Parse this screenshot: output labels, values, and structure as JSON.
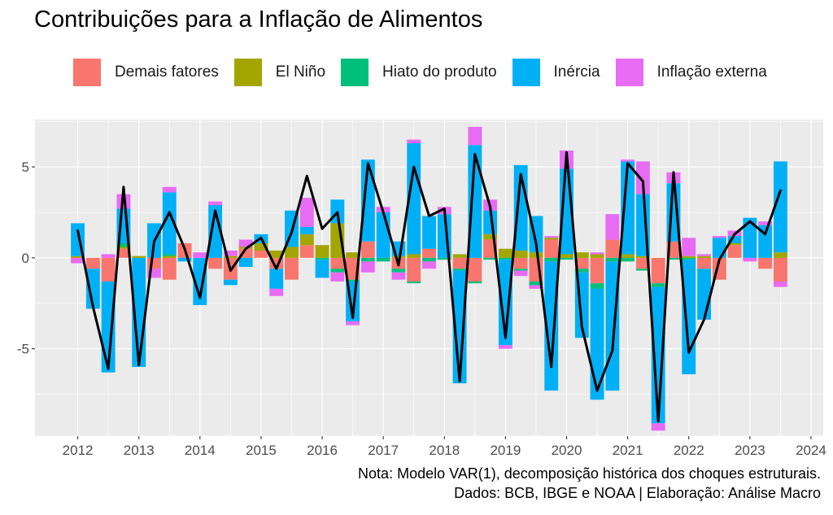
{
  "chart_data": {
    "type": "bar",
    "title": "Contribuições para a Inflação de Alimentos",
    "ylim": [
      -9.8,
      7.6
    ],
    "xlim": [
      2011.3,
      2024.2
    ],
    "y_ticks": [
      "-5",
      "0",
      "5"
    ],
    "y_tick_values": [
      -5,
      0,
      5
    ],
    "x_ticks": [
      "2012",
      "2013",
      "2014",
      "2015",
      "2016",
      "2017",
      "2018",
      "2019",
      "2020",
      "2021",
      "2022",
      "2023",
      "2024"
    ],
    "x_tick_values": [
      2012,
      2013,
      2014,
      2015,
      2016,
      2017,
      2018,
      2019,
      2020,
      2021,
      2022,
      2023,
      2024
    ],
    "grid": true,
    "legend_position": "top",
    "legend": [
      {
        "name": "Demais fatores",
        "color": "#F8766D"
      },
      {
        "name": "El Niño",
        "color": "#A3A500"
      },
      {
        "name": "Hiato do produto",
        "color": "#00BF7D"
      },
      {
        "name": "Inércia",
        "color": "#00B0F6"
      },
      {
        "name": "Inflação externa",
        "color": "#E76BF3"
      }
    ],
    "x": [
      2012,
      2012.25,
      2012.5,
      2012.75,
      2013,
      2013.25,
      2013.5,
      2013.75,
      2014,
      2014.25,
      2014.5,
      2014.75,
      2015,
      2015.25,
      2015.5,
      2015.75,
      2016,
      2016.25,
      2016.5,
      2016.75,
      2017,
      2017.25,
      2017.5,
      2017.75,
      2018,
      2018.25,
      2018.5,
      2018.75,
      2019,
      2019.25,
      2019.5,
      2019.75,
      2020,
      2020.25,
      2020.5,
      2020.75,
      2021,
      2021.25,
      2021.5,
      2021.75,
      2022,
      2022.25,
      2022.5,
      2022.75,
      2023,
      2023.25,
      2023.5
    ],
    "series": [
      {
        "name": "Demais fatores",
        "values": [
          0,
          -0.6,
          -1.3,
          0.5,
          0,
          -0.6,
          -1.2,
          0.8,
          0,
          -0.6,
          -1.2,
          0.5,
          0.4,
          -0.6,
          -1.2,
          0.7,
          0,
          -0.6,
          -1.2,
          0.9,
          0,
          -0.6,
          -1.3,
          0.5,
          0,
          -0.6,
          -1.3,
          1.0,
          0,
          -0.6,
          -1.3,
          1.0,
          0,
          -0.6,
          -1.4,
          1.0,
          0,
          -0.6,
          -1.4,
          0.9,
          0,
          -0.6,
          -1.2,
          0.7,
          0,
          -0.6,
          -1.3
        ]
      },
      {
        "name": "El Niño",
        "values": [
          0.1,
          0,
          0,
          0.1,
          0.1,
          0,
          0.1,
          0,
          0,
          0,
          0.1,
          0.1,
          0.4,
          0.4,
          0.6,
          0.6,
          0.7,
          1.9,
          0.3,
          0,
          0,
          0.1,
          0.2,
          0,
          0,
          0.2,
          0,
          0.3,
          0.5,
          0.4,
          0.3,
          0.1,
          0.2,
          0.3,
          0.2,
          0,
          0.2,
          0.1,
          0,
          0,
          0.1,
          0.1,
          0,
          0.1,
          0,
          0,
          0.3
        ]
      },
      {
        "name": "Hiato do produto",
        "values": [
          0,
          0,
          0,
          0.2,
          0,
          0,
          0.1,
          0,
          0,
          0,
          0,
          0,
          0,
          0,
          0,
          0,
          -0.1,
          -0.2,
          -0.1,
          -0.2,
          -0.2,
          -0.2,
          -0.1,
          -0.2,
          -0.1,
          -0.1,
          -0.1,
          -0.1,
          -0.1,
          -0.1,
          -0.2,
          -0.2,
          -0.1,
          -0.2,
          -0.3,
          -0.2,
          -0.2,
          -0.1,
          -0.2,
          -0.1,
          -0.1,
          0,
          0,
          0,
          0,
          0,
          0
        ]
      },
      {
        "name": "Inércia",
        "values": [
          1.8,
          -2.2,
          -5.0,
          1.9,
          -6.0,
          1.9,
          3.4,
          -0.2,
          -2.6,
          2.9,
          -0.3,
          -0.5,
          0.5,
          -1.1,
          2.0,
          0.4,
          -1.0,
          1.3,
          -2.2,
          4.5,
          2.5,
          0.8,
          6.1,
          1.8,
          2.4,
          -6.2,
          6.2,
          1.3,
          -4.7,
          4.7,
          2.0,
          -7.1,
          4.7,
          -3.6,
          -6.1,
          -7.1,
          5.1,
          3.4,
          -7.5,
          3.2,
          -6.3,
          -2.8,
          1.1,
          0.4,
          2.2,
          1.8,
          5.0
        ]
      },
      {
        "name": "Inflação externa",
        "values": [
          -0.3,
          0,
          0.2,
          0.8,
          0,
          -0.5,
          0.3,
          0,
          0.3,
          0.2,
          0.3,
          0.4,
          0,
          -0.4,
          0,
          1.6,
          0,
          -0.5,
          -0.2,
          -0.6,
          0.3,
          -0.4,
          0.2,
          -0.4,
          0.4,
          0,
          1.0,
          0.6,
          -0.2,
          -0.3,
          -0.2,
          0.1,
          1.0,
          0,
          0.1,
          1.4,
          0.1,
          1.8,
          -0.4,
          0.6,
          1.0,
          0.1,
          0.1,
          0.3,
          -0.2,
          0.2,
          -0.3
        ]
      }
    ],
    "line": {
      "name": "Inflação de Alimentos",
      "color": "#000000",
      "values": [
        1.5,
        -2.7,
        -6.1,
        3.9,
        -5.9,
        0.9,
        2.5,
        0.5,
        -2.2,
        2.6,
        -0.7,
        0.5,
        1.1,
        -0.6,
        1.4,
        4.5,
        1.6,
        2.5,
        -3.3,
        5.2,
        2.5,
        -0.4,
        5.0,
        2.3,
        2.7,
        -6.8,
        5.7,
        2.8,
        -4.4,
        4.6,
        0.8,
        -6.0,
        5.8,
        -3.8,
        -7.3,
        -5.1,
        5.2,
        4.2,
        -9.0,
        4.7,
        -5.2,
        -3.4,
        -0.1,
        1.3,
        2.0,
        1.3,
        3.7
      ]
    }
  },
  "notes": {
    "line1": "Nota: Modelo VAR(1), decomposição histórica dos choques estruturais.",
    "line2": "Dados: BCB, IBGE e NOAA | Elaboração: Análise Macro"
  }
}
